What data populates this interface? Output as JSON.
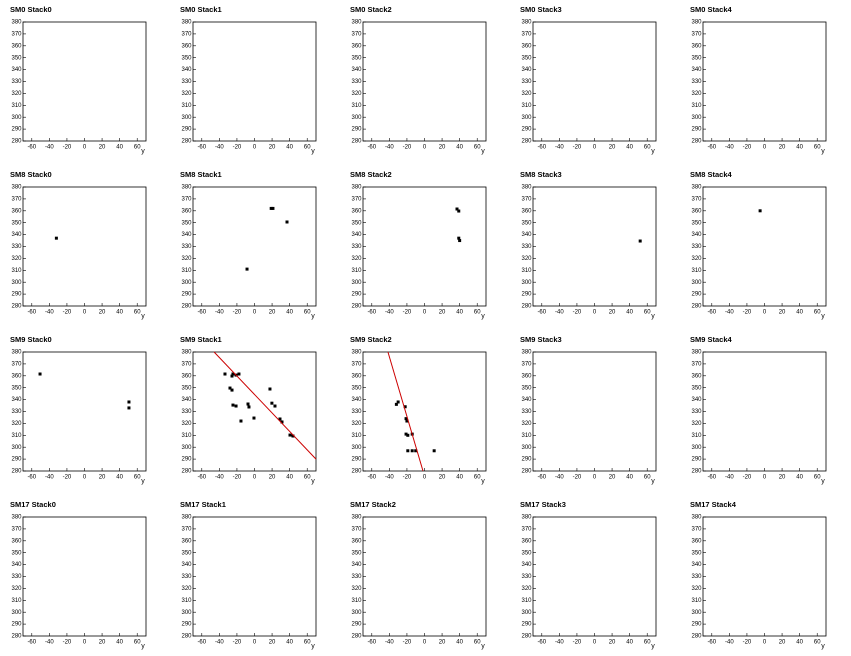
{
  "chart_data": [
    {
      "type": "scatter",
      "title": "SM0 Stack0",
      "xlabel": "y",
      "xlim": [
        -70,
        70
      ],
      "ylim": [
        280,
        380
      ],
      "xticks": [
        -60,
        -40,
        -20,
        0,
        20,
        40,
        60
      ],
      "yticks": [
        280,
        290,
        300,
        310,
        320,
        330,
        340,
        350,
        360,
        370,
        380
      ],
      "color": "#000000",
      "x": [],
      "y": []
    },
    {
      "type": "scatter",
      "title": "SM0 Stack1",
      "xlabel": "y",
      "xlim": [
        -70,
        70
      ],
      "ylim": [
        280,
        380
      ],
      "xticks": [
        -60,
        -40,
        -20,
        0,
        20,
        40,
        60
      ],
      "yticks": [
        280,
        290,
        300,
        310,
        320,
        330,
        340,
        350,
        360,
        370,
        380
      ],
      "color": "#000000",
      "x": [],
      "y": []
    },
    {
      "type": "scatter",
      "title": "SM0 Stack2",
      "xlabel": "y",
      "xlim": [
        -70,
        70
      ],
      "ylim": [
        280,
        380
      ],
      "xticks": [
        -60,
        -40,
        -20,
        0,
        20,
        40,
        60
      ],
      "yticks": [
        280,
        290,
        300,
        310,
        320,
        330,
        340,
        350,
        360,
        370,
        380
      ],
      "color": "#000000",
      "x": [],
      "y": []
    },
    {
      "type": "scatter",
      "title": "SM0 Stack3",
      "xlabel": "y",
      "xlim": [
        -70,
        70
      ],
      "ylim": [
        280,
        380
      ],
      "xticks": [
        -60,
        -40,
        -20,
        0,
        20,
        40,
        60
      ],
      "yticks": [
        280,
        290,
        300,
        310,
        320,
        330,
        340,
        350,
        360,
        370,
        380
      ],
      "color": "#000000",
      "x": [],
      "y": []
    },
    {
      "type": "scatter",
      "title": "SM0 Stack4",
      "xlabel": "y",
      "xlim": [
        -70,
        70
      ],
      "ylim": [
        280,
        380
      ],
      "xticks": [
        -60,
        -40,
        -20,
        0,
        20,
        40,
        60
      ],
      "yticks": [
        280,
        290,
        300,
        310,
        320,
        330,
        340,
        350,
        360,
        370,
        380
      ],
      "color": "#000000",
      "x": [],
      "y": []
    },
    {
      "type": "scatter",
      "title": "SM8 Stack0",
      "xlabel": "y",
      "xlim": [
        -70,
        70
      ],
      "ylim": [
        280,
        380
      ],
      "xticks": [
        -60,
        -40,
        -20,
        0,
        20,
        40,
        60
      ],
      "yticks": [
        280,
        290,
        300,
        310,
        320,
        330,
        340,
        350,
        360,
        370,
        380
      ],
      "color": "#000000",
      "x": [
        -32
      ],
      "y": [
        337
      ]
    },
    {
      "type": "scatter",
      "title": "SM8 Stack1",
      "xlabel": "y",
      "xlim": [
        -70,
        70
      ],
      "ylim": [
        280,
        380
      ],
      "xticks": [
        -60,
        -40,
        -20,
        0,
        20,
        40,
        60
      ],
      "yticks": [
        280,
        290,
        300,
        310,
        320,
        330,
        340,
        350,
        360,
        370,
        380
      ],
      "color": "#000000",
      "x": [
        19,
        21,
        37,
        -8.5
      ],
      "y": [
        362,
        362,
        350.6,
        311
      ]
    },
    {
      "type": "scatter",
      "title": "SM8 Stack2",
      "xlabel": "y",
      "xlim": [
        -70,
        70
      ],
      "ylim": [
        280,
        380
      ],
      "xticks": [
        -60,
        -40,
        -20,
        0,
        20,
        40,
        60
      ],
      "yticks": [
        280,
        290,
        300,
        310,
        320,
        330,
        340,
        350,
        360,
        370,
        380
      ],
      "color": "#000000",
      "x": [
        37,
        39,
        39,
        40
      ],
      "y": [
        361.5,
        359.8,
        337,
        335
      ]
    },
    {
      "type": "scatter",
      "title": "SM8 Stack3",
      "xlabel": "y",
      "xlim": [
        -70,
        70
      ],
      "ylim": [
        280,
        380
      ],
      "xticks": [
        -60,
        -40,
        -20,
        0,
        20,
        40,
        60
      ],
      "yticks": [
        280,
        290,
        300,
        310,
        320,
        330,
        340,
        350,
        360,
        370,
        380
      ],
      "color": "#000000",
      "x": [
        52
      ],
      "y": [
        334.6
      ]
    },
    {
      "type": "scatter",
      "title": "SM8 Stack4",
      "xlabel": "y",
      "xlim": [
        -70,
        70
      ],
      "ylim": [
        280,
        380
      ],
      "xticks": [
        -60,
        -40,
        -20,
        0,
        20,
        40,
        60
      ],
      "yticks": [
        280,
        290,
        300,
        310,
        320,
        330,
        340,
        350,
        360,
        370,
        380
      ],
      "color": "#000000",
      "x": [
        -5
      ],
      "y": [
        360
      ]
    },
    {
      "type": "scatter",
      "title": "SM9 Stack0",
      "xlabel": "y",
      "xlim": [
        -70,
        70
      ],
      "ylim": [
        280,
        380
      ],
      "xticks": [
        -60,
        -40,
        -20,
        0,
        20,
        40,
        60
      ],
      "yticks": [
        280,
        290,
        300,
        310,
        320,
        330,
        340,
        350,
        360,
        370,
        380
      ],
      "color": "#000000",
      "x": [
        -50.6,
        50.6,
        50.6
      ],
      "y": [
        361.5,
        338,
        333
      ]
    },
    {
      "type": "scatter",
      "title": "SM9 Stack1",
      "xlabel": "y",
      "xlim": [
        -70,
        70
      ],
      "ylim": [
        280,
        380
      ],
      "xticks": [
        -60,
        -40,
        -20,
        0,
        20,
        40,
        60
      ],
      "yticks": [
        280,
        290,
        300,
        310,
        320,
        330,
        340,
        350,
        360,
        370,
        380
      ],
      "color": "#000000",
      "x": [
        -33.6,
        -25.6,
        -24.5,
        -21,
        -17.7,
        -27.9,
        -25.6,
        -24.5,
        -21,
        -15.4,
        -7.4,
        -6.3,
        -0.6,
        17.6,
        19.8,
        23.3,
        29,
        31.3,
        40.4,
        43.8
      ],
      "y": [
        361.5,
        359.8,
        361.5,
        360.6,
        361.5,
        349.7,
        348,
        335.4,
        334.6,
        322,
        336.3,
        333.8,
        324.5,
        348.9,
        337,
        334.6,
        323.7,
        321.2,
        310.2,
        309.4
      ],
      "fit": {
        "color": "#cc0000",
        "x": [
          -46,
          70
        ],
        "y": [
          380,
          290
        ]
      }
    },
    {
      "type": "scatter",
      "title": "SM9 Stack2",
      "xlabel": "y",
      "xlim": [
        -70,
        70
      ],
      "ylim": [
        280,
        380
      ],
      "xticks": [
        -60,
        -40,
        -20,
        0,
        20,
        40,
        60
      ],
      "yticks": [
        280,
        290,
        300,
        310,
        320,
        330,
        340,
        350,
        360,
        370,
        380
      ],
      "color": "#000000",
      "x": [
        -32,
        -30,
        -22,
        -21,
        -20,
        -21,
        -19,
        -14,
        -19,
        -14,
        -10,
        11
      ],
      "y": [
        336,
        338,
        334,
        324,
        322,
        311,
        310,
        311,
        297,
        297,
        297,
        297
      ],
      "fit": {
        "color": "#cc0000",
        "x": [
          -41.6,
          -1.7
        ],
        "y": [
          380,
          280
        ]
      }
    },
    {
      "type": "scatter",
      "title": "SM9 Stack3",
      "xlabel": "y",
      "xlim": [
        -70,
        70
      ],
      "ylim": [
        280,
        380
      ],
      "xticks": [
        -60,
        -40,
        -20,
        0,
        20,
        40,
        60
      ],
      "yticks": [
        280,
        290,
        300,
        310,
        320,
        330,
        340,
        350,
        360,
        370,
        380
      ],
      "color": "#000000",
      "x": [],
      "y": []
    },
    {
      "type": "scatter",
      "title": "SM9 Stack4",
      "xlabel": "y",
      "xlim": [
        -70,
        70
      ],
      "ylim": [
        280,
        380
      ],
      "xticks": [
        -60,
        -40,
        -20,
        0,
        20,
        40,
        60
      ],
      "yticks": [
        280,
        290,
        300,
        310,
        320,
        330,
        340,
        350,
        360,
        370,
        380
      ],
      "color": "#000000",
      "x": [],
      "y": []
    },
    {
      "type": "scatter",
      "title": "SM17 Stack0",
      "xlabel": "y",
      "xlim": [
        -70,
        70
      ],
      "ylim": [
        280,
        380
      ],
      "xticks": [
        -60,
        -40,
        -20,
        0,
        20,
        40,
        60
      ],
      "yticks": [
        280,
        290,
        300,
        310,
        320,
        330,
        340,
        350,
        360,
        370,
        380
      ],
      "color": "#000000",
      "x": [],
      "y": []
    },
    {
      "type": "scatter",
      "title": "SM17 Stack1",
      "xlabel": "y",
      "xlim": [
        -70,
        70
      ],
      "ylim": [
        280,
        380
      ],
      "xticks": [
        -60,
        -40,
        -20,
        0,
        20,
        40,
        60
      ],
      "yticks": [
        280,
        290,
        300,
        310,
        320,
        330,
        340,
        350,
        360,
        370,
        380
      ],
      "color": "#000000",
      "x": [],
      "y": []
    },
    {
      "type": "scatter",
      "title": "SM17 Stack2",
      "xlabel": "y",
      "xlim": [
        -70,
        70
      ],
      "ylim": [
        280,
        380
      ],
      "xticks": [
        -60,
        -40,
        -20,
        0,
        20,
        40,
        60
      ],
      "yticks": [
        280,
        290,
        300,
        310,
        320,
        330,
        340,
        350,
        360,
        370,
        380
      ],
      "color": "#000000",
      "x": [],
      "y": []
    },
    {
      "type": "scatter",
      "title": "SM17 Stack3",
      "xlabel": "y",
      "xlim": [
        -70,
        70
      ],
      "ylim": [
        280,
        380
      ],
      "xticks": [
        -60,
        -40,
        -20,
        0,
        20,
        40,
        60
      ],
      "yticks": [
        280,
        290,
        300,
        310,
        320,
        330,
        340,
        350,
        360,
        370,
        380
      ],
      "color": "#000000",
      "x": [],
      "y": []
    },
    {
      "type": "scatter",
      "title": "SM17 Stack4",
      "xlabel": "y",
      "xlim": [
        -70,
        70
      ],
      "ylim": [
        280,
        380
      ],
      "xticks": [
        -60,
        -40,
        -20,
        0,
        20,
        40,
        60
      ],
      "yticks": [
        280,
        290,
        300,
        310,
        320,
        330,
        340,
        350,
        360,
        370,
        380
      ],
      "color": "#000000",
      "x": [],
      "y": []
    }
  ]
}
